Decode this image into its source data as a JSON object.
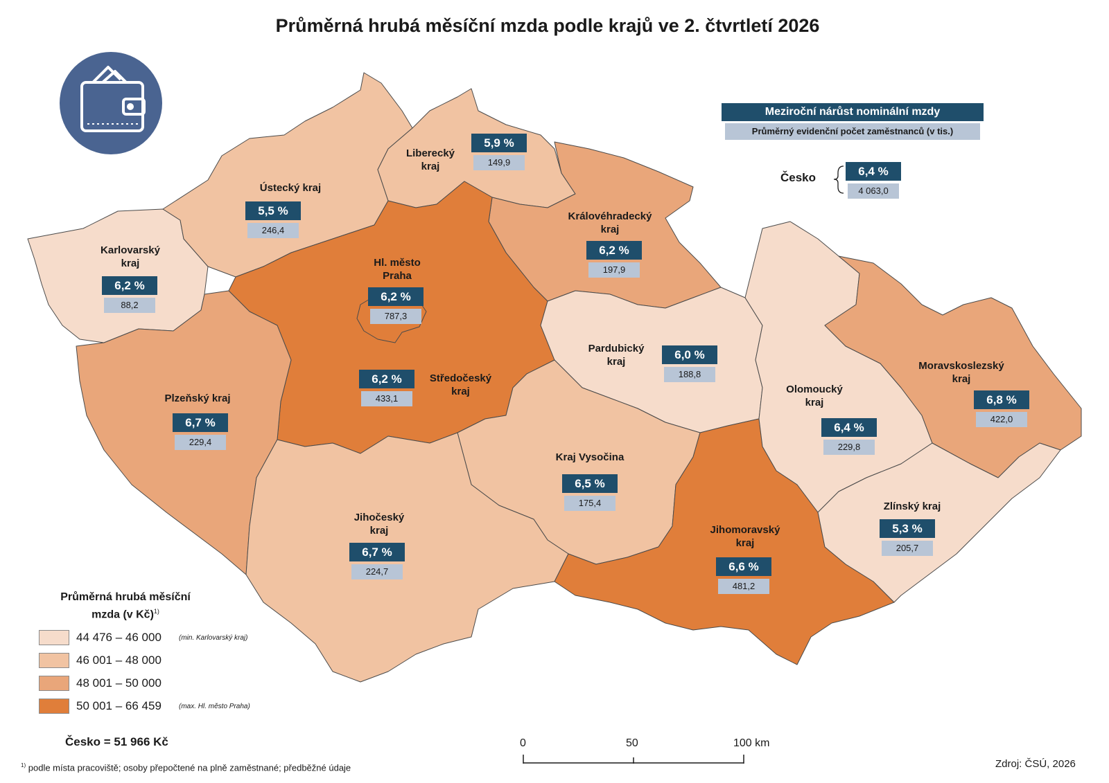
{
  "title": "Průměrná hrubá měsíční mzda podle krajů ve 2. čtvrtletí 2026",
  "icon": "wallet-icon",
  "legend_header": {
    "growth": "Meziroční nárůst nominální mzdy",
    "employees": "Průměrný evidenční počet zaměstnanců (v tis.)"
  },
  "czechia": {
    "label": "Česko",
    "growth": "6,4 %",
    "employees": "4 063,0",
    "total_label": "Česko = 51 966 Kč"
  },
  "legend": {
    "title_line1": "Průměrná hrubá měsíční",
    "title_line2": "mzda (v Kč)",
    "title_footnote_mark": "1)",
    "classes": [
      {
        "range": "44 476 – 46 000",
        "note": "(min. Karlovarský kraj)",
        "color": "#f6dccb"
      },
      {
        "range": "46 001 – 48 000",
        "note": "",
        "color": "#f1c3a2"
      },
      {
        "range": "48 001 – 50 000",
        "note": "",
        "color": "#e9a67a"
      },
      {
        "range": "50 001 – 66 459",
        "note": "(max. Hl. město Praha)",
        "color": "#e07e3a"
      }
    ]
  },
  "regions": [
    {
      "name_line1": "Karlovarský",
      "name_line2": "kraj",
      "growth": "6,2 %",
      "employees": "88,2",
      "class": 0
    },
    {
      "name_line1": "Ústecký kraj",
      "name_line2": "",
      "growth": "5,5 %",
      "employees": "246,4",
      "class": 1
    },
    {
      "name_line1": "Liberecký",
      "name_line2": "kraj",
      "growth": "5,9 %",
      "employees": "149,9",
      "class": 1
    },
    {
      "name_line1": "Královéhradecký",
      "name_line2": "kraj",
      "growth": "6,2 %",
      "employees": "197,9",
      "class": 2
    },
    {
      "name_line1": "Hl. město",
      "name_line2": "Praha",
      "growth": "6,2 %",
      "employees": "787,3",
      "class": 3
    },
    {
      "name_line1": "Středočeský",
      "name_line2": "kraj",
      "growth": "6,2 %",
      "employees": "433,1",
      "class": 3
    },
    {
      "name_line1": "Plzeňský kraj",
      "name_line2": "",
      "growth": "6,7 %",
      "employees": "229,4",
      "class": 2
    },
    {
      "name_line1": "Pardubický",
      "name_line2": "kraj",
      "growth": "6,0 %",
      "employees": "188,8",
      "class": 0
    },
    {
      "name_line1": "Kraj Vysočina",
      "name_line2": "",
      "growth": "6,5 %",
      "employees": "175,4",
      "class": 1
    },
    {
      "name_line1": "Jihočeský",
      "name_line2": "kraj",
      "growth": "6,7 %",
      "employees": "224,7",
      "class": 1
    },
    {
      "name_line1": "Jihomoravský",
      "name_line2": "kraj",
      "growth": "6,6 %",
      "employees": "481,2",
      "class": 3
    },
    {
      "name_line1": "Olomoucký",
      "name_line2": "kraj",
      "growth": "6,4 %",
      "employees": "229,8",
      "class": 0
    },
    {
      "name_line1": "Moravskoslezský",
      "name_line2": "kraj",
      "growth": "6,8 %",
      "employees": "422,0",
      "class": 2
    },
    {
      "name_line1": "Zlínský kraj",
      "name_line2": "",
      "growth": "5,3 %",
      "employees": "205,7",
      "class": 0
    }
  ],
  "scale_bar": {
    "labels": [
      "0",
      "50",
      "100 km"
    ]
  },
  "footnote": {
    "mark": "1)",
    "text": "podle místa pracoviště; osoby přepočtené na plně zaměstnané; předběžné údaje"
  },
  "source": "Zdroj: ČSÚ, 2026"
}
